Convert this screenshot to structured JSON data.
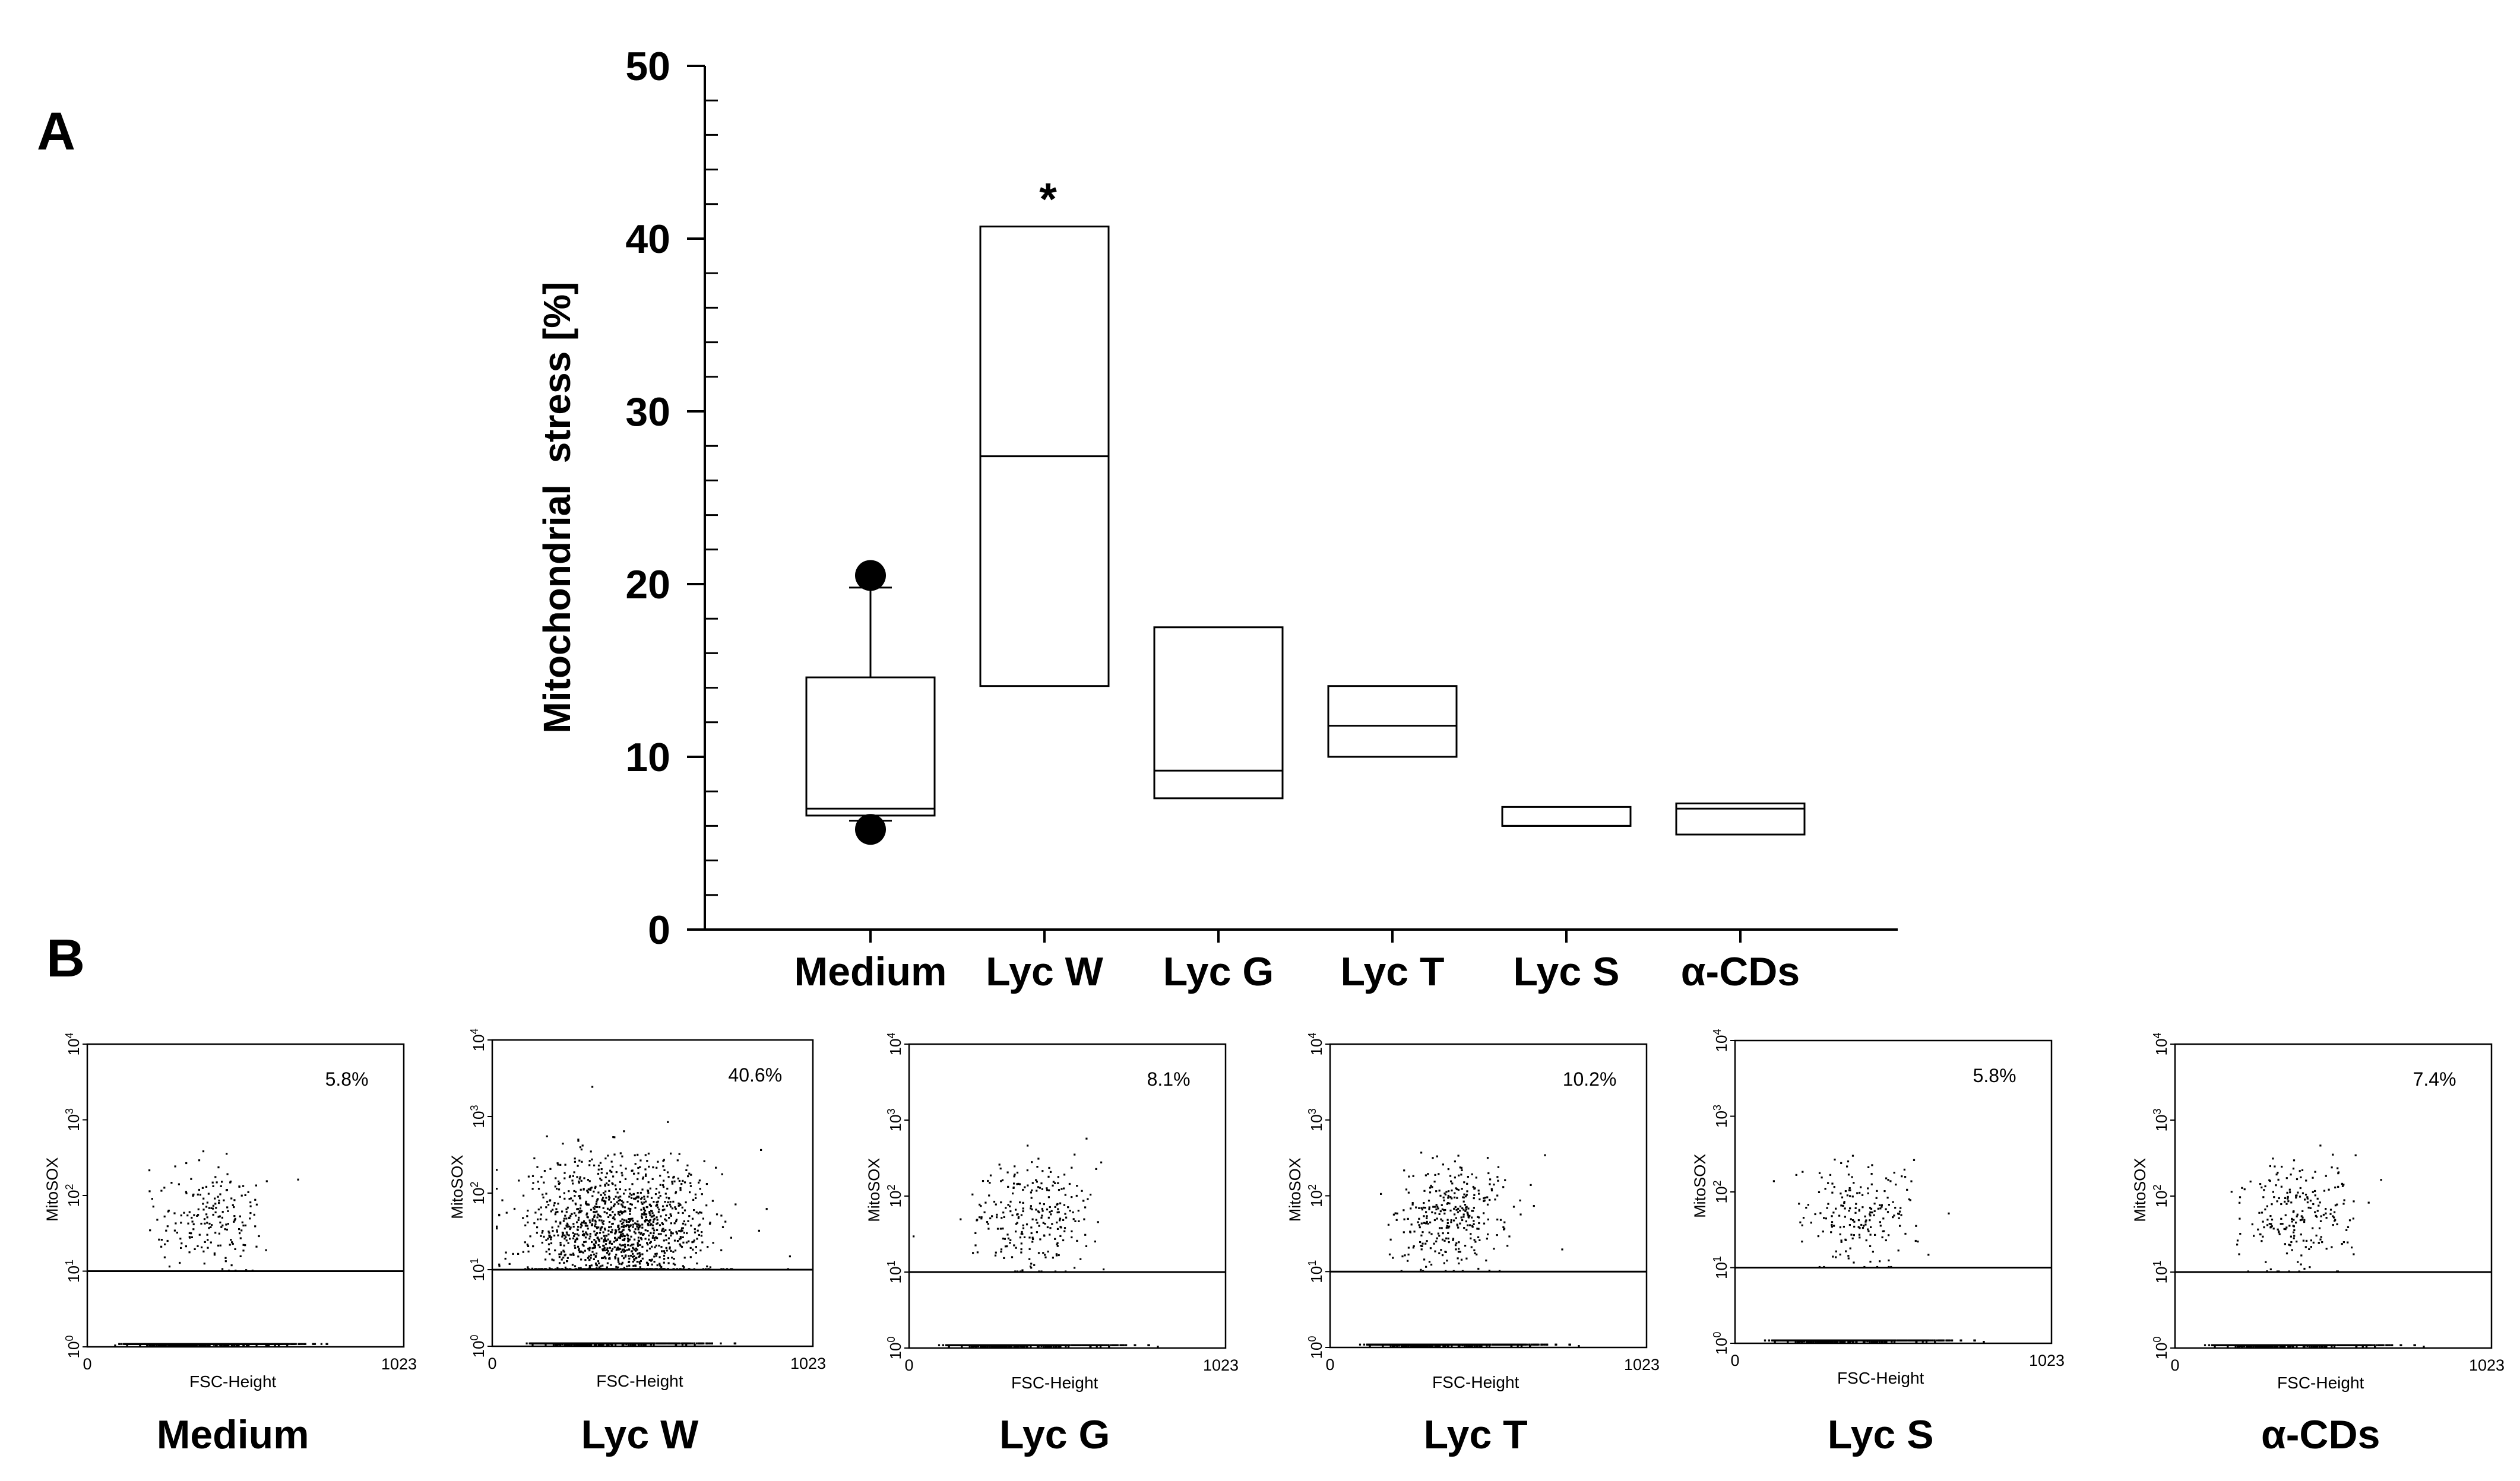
{
  "panel_labels": {
    "a": "A",
    "b": "B"
  },
  "chart_data": [
    {
      "type": "box",
      "panel": "A",
      "title": "",
      "xlabel": "",
      "ylabel": "Mitochondrial  stress [%]",
      "ylim": [
        0,
        50
      ],
      "yticks": [
        "0",
        "10",
        "20",
        "30",
        "40",
        "50"
      ],
      "minor_tick_step": 2,
      "categories": [
        "Medium",
        "Lyc W",
        "Lyc G",
        "Lyc T",
        "Lyc S",
        "α-CDs"
      ],
      "boxes": [
        {
          "category": "Medium",
          "q1": 6.6,
          "median": 7.0,
          "q3": 14.6,
          "whisker_low": 6.3,
          "whisker_high": 19.8,
          "outliers": [
            20.5,
            5.8
          ],
          "annotation": ""
        },
        {
          "category": "Lyc W",
          "q1": 14.1,
          "median": 27.4,
          "q3": 40.7,
          "whisker_low": null,
          "whisker_high": null,
          "outliers": [],
          "annotation": "*"
        },
        {
          "category": "Lyc G",
          "q1": 7.6,
          "median": 9.2,
          "q3": 17.5,
          "whisker_low": null,
          "whisker_high": null,
          "outliers": [],
          "annotation": ""
        },
        {
          "category": "Lyc T",
          "q1": 10.0,
          "median": 11.8,
          "q3": 14.1,
          "whisker_low": null,
          "whisker_high": null,
          "outliers": [],
          "annotation": ""
        },
        {
          "category": "Lyc S",
          "q1": 6.0,
          "median": 6.0,
          "q3": 7.1,
          "whisker_low": null,
          "whisker_high": null,
          "outliers": [],
          "annotation": ""
        },
        {
          "category": "α-CDs",
          "q1": 5.5,
          "median": 7.0,
          "q3": 7.3,
          "whisker_low": null,
          "whisker_high": null,
          "outliers": [],
          "annotation": ""
        }
      ]
    },
    {
      "type": "scatter",
      "panel": "B",
      "subtype": "flow-cytometry dot plots",
      "xlabel": "FSC-Height",
      "ylabel": "MitoSOX",
      "x_tick_labels": [
        "0",
        "1023"
      ],
      "y_tick_labels": [
        {
          "base": "10",
          "exp": "0"
        },
        {
          "base": "10",
          "exp": "1"
        },
        {
          "base": "10",
          "exp": "2"
        },
        {
          "base": "10",
          "exp": "3"
        },
        {
          "base": "10",
          "exp": "4"
        }
      ],
      "gate_decade": 1,
      "plots": [
        {
          "name": "Medium",
          "percent": "5.8%",
          "upper_fraction": 0.06
        },
        {
          "name": "Lyc W",
          "percent": "40.6%",
          "upper_fraction": 0.41
        },
        {
          "name": "Lyc G",
          "percent": "8.1%",
          "upper_fraction": 0.08
        },
        {
          "name": "Lyc T",
          "percent": "10.2%",
          "upper_fraction": 0.1
        },
        {
          "name": "Lyc S",
          "percent": "5.8%",
          "upper_fraction": 0.06
        },
        {
          "name": "α-CDs",
          "percent": "7.4%",
          "upper_fraction": 0.07
        }
      ]
    }
  ]
}
